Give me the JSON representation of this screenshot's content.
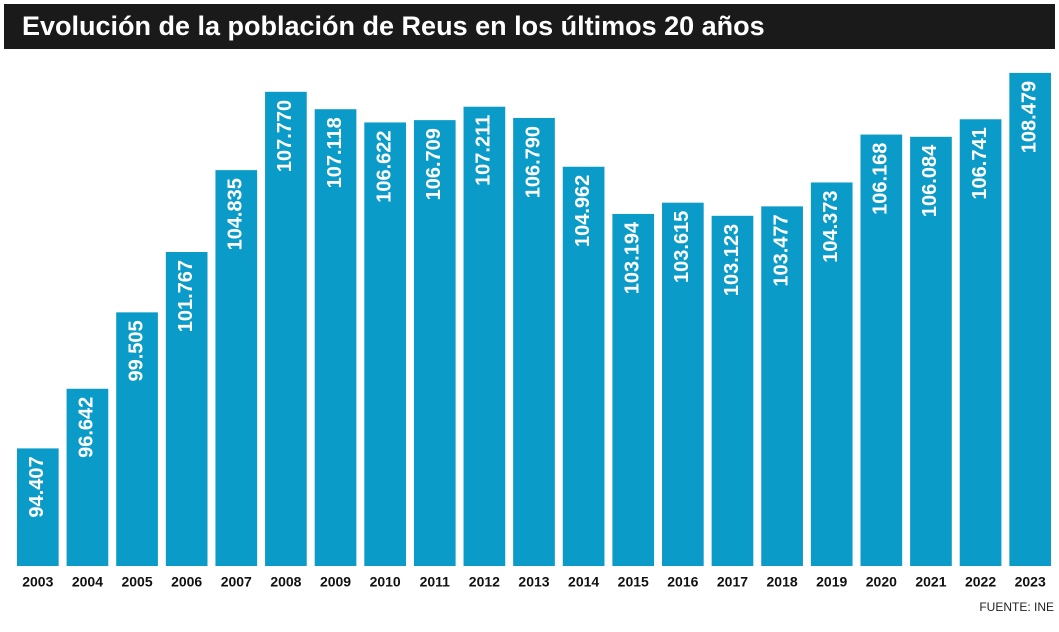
{
  "chart_data": {
    "type": "bar",
    "title": "Evolución de la población de Reus en los últimos 20 años",
    "source": "FUENTE: INE",
    "categories": [
      "2003",
      "2004",
      "2005",
      "2006",
      "2007",
      "2008",
      "2009",
      "2010",
      "2011",
      "2012",
      "2013",
      "2014",
      "2015",
      "2016",
      "2017",
      "2018",
      "2019",
      "2020",
      "2021",
      "2022",
      "2023"
    ],
    "values": [
      94407,
      96642,
      99505,
      101767,
      104835,
      107770,
      107118,
      106622,
      106709,
      107211,
      106790,
      104962,
      103194,
      103615,
      103123,
      103477,
      104373,
      106168,
      106084,
      106741,
      108479
    ],
    "value_labels": [
      "94.407",
      "96.642",
      "99.505",
      "101.767",
      "104.835",
      "107.770",
      "107.118",
      "106.622",
      "106.709",
      "107.211",
      "106.790",
      "104.962",
      "103.194",
      "103.615",
      "103.123",
      "103.477",
      "104.373",
      "106.168",
      "106.084",
      "106.741",
      "108.479"
    ],
    "color": "#0a9bc9",
    "ylim": [
      90000,
      108700
    ]
  }
}
